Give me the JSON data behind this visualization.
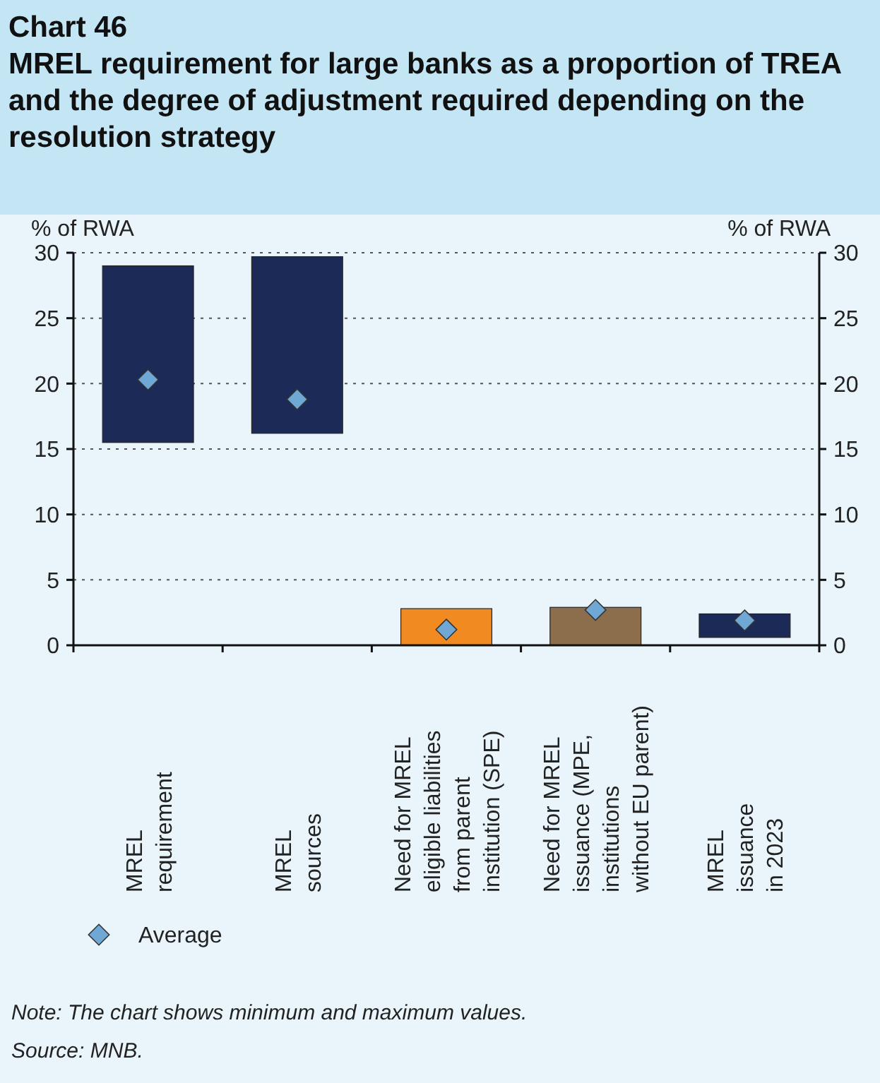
{
  "chart_data": {
    "type": "bar",
    "title": "Chart 46",
    "subtitle": "MREL requirement for large banks as a proportion of TREA and the degree of adjustment required depending on the resolution strategy",
    "categories": [
      "MREL\nrequirement",
      "MREL\nsources",
      "Need for MREL\neligible liabilities\nfrom parent\ninstitution (SPE)",
      "Need for MREL\nissuance (MPE,\ninstitutions\nwithout EU parent)",
      "MREL\nissuance\nin 2023"
    ],
    "series": [
      {
        "values": [
          13.5,
          13.5,
          2.8,
          2.9,
          1.8
        ],
        "base": [
          15.5,
          16.2,
          0,
          0,
          0.6
        ],
        "colors": [
          "#1b2a57",
          "#1b2a57",
          "#f28a22",
          "#8c6e4d",
          "#1b2a57"
        ]
      },
      {
        "type": "scatter",
        "name": "Average",
        "color": "#6fa8d4",
        "marker": "diamond",
        "x": [
          "MREL\nrequirement",
          "MREL\nsources",
          "Need for MREL\neligible liabilities\nfrom parent\ninstitution (SPE)",
          "Need for MREL\nissuance (MPE,\ninstitutions\nwithout EU parent)",
          "MREL\nissuance\nin 2023"
        ],
        "values": [
          20.3,
          18.8,
          1.2,
          2.7,
          1.9
        ]
      }
    ],
    "ylabel": "% of RWA",
    "y2label": "% of RWA",
    "ylim": [
      0,
      30
    ],
    "yticks": [
      0,
      5,
      10,
      15,
      20,
      25,
      30
    ],
    "y2lim": [
      0,
      30
    ],
    "y2ticks": [
      0,
      5,
      10,
      15,
      20,
      25,
      30
    ],
    "grid": "y",
    "legend": "bottom left",
    "annotations": [
      "Note: The chart shows minimum and maximum values.",
      "Source: MNB."
    ]
  }
}
